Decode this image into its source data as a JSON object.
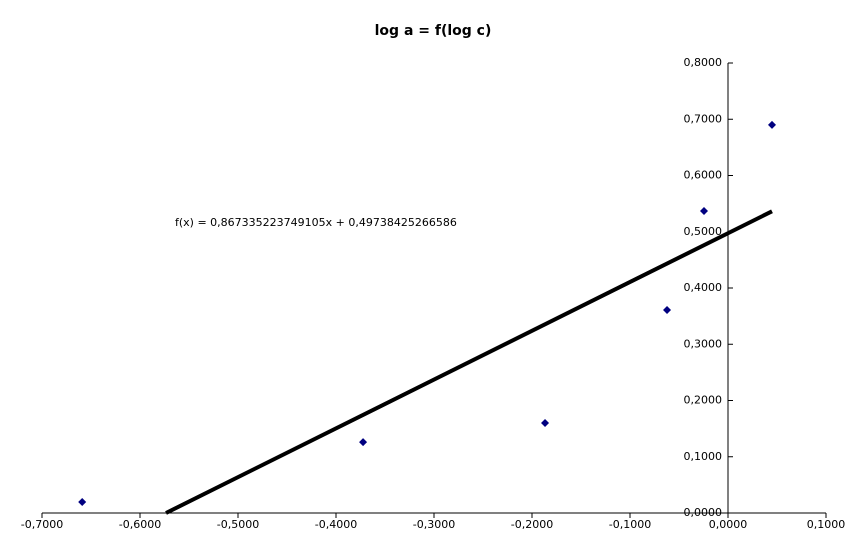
{
  "chart_data": {
    "type": "scatter",
    "title": "log a = f(log c)",
    "series": [
      {
        "color": "#000080",
        "x": [
          -0.659,
          -0.3724,
          -0.1867,
          -0.0622,
          -0.0245,
          0.0449
        ],
        "values": [
          0.0196,
          0.126,
          0.16,
          0.361,
          0.537,
          0.69
        ]
      }
    ],
    "trendline": {
      "slope": 0.867335223749105,
      "intercept": 0.49738425266586,
      "label": "f(x) = 0,867335223749105x + 0,49738425266586",
      "color": "#000000"
    },
    "xlim": [
      -0.7,
      0.1
    ],
    "xticks": [
      {
        "value": -0.7,
        "label": "-0,7000"
      },
      {
        "value": -0.6,
        "label": "-0,6000"
      },
      {
        "value": -0.5,
        "label": "-0,5000"
      },
      {
        "value": -0.4,
        "label": "-0,4000"
      },
      {
        "value": -0.3,
        "label": "-0,3000"
      },
      {
        "value": -0.2,
        "label": "-0,2000"
      },
      {
        "value": -0.1,
        "label": "-0,1000"
      },
      {
        "value": 0,
        "label": "0,0000"
      },
      {
        "value": 0.1,
        "label": "0,1000"
      }
    ],
    "ylim": [
      0,
      0.8
    ],
    "yticks": [
      {
        "value": 0,
        "label": "0,0000"
      },
      {
        "value": 0.1,
        "label": "0,1000"
      },
      {
        "value": 0.2,
        "label": "0,2000"
      },
      {
        "value": 0.3,
        "label": "0,3000"
      },
      {
        "value": 0.4,
        "label": "0,4000"
      },
      {
        "value": 0.5,
        "label": "0,5000"
      },
      {
        "value": 0.6,
        "label": "0,6000"
      },
      {
        "value": 0.7,
        "label": "0,7000"
      },
      {
        "value": 0.8,
        "label": "0,8000"
      }
    ]
  }
}
